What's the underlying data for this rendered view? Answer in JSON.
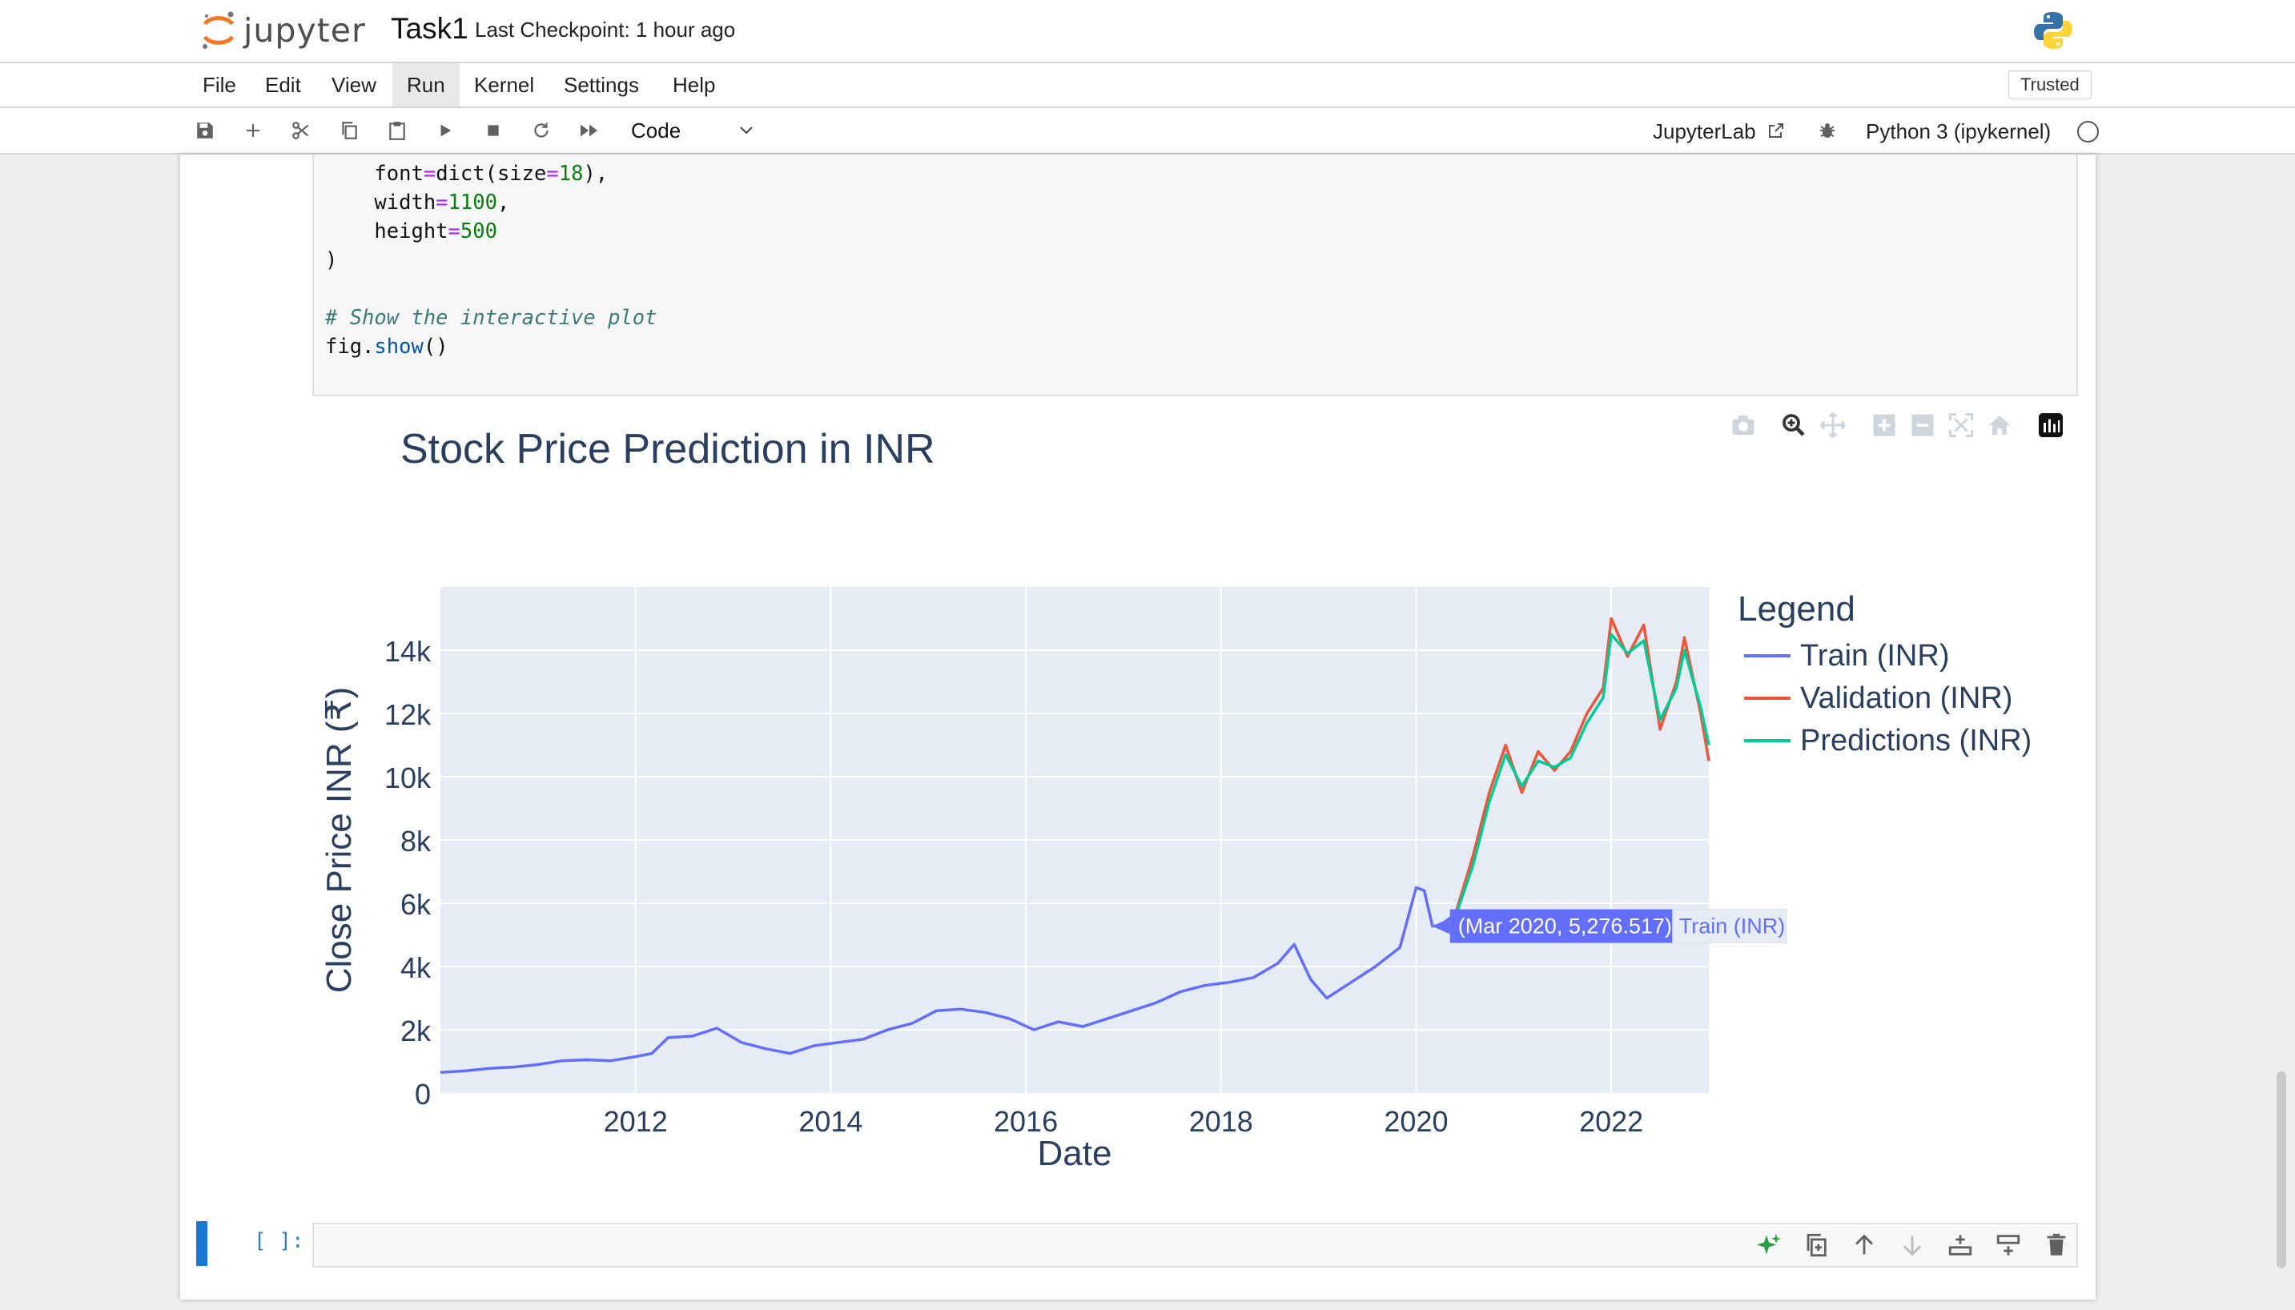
{
  "header": {
    "logo_text": "jupyter",
    "notebook_title": "Task1",
    "checkpoint": "Last Checkpoint: 1 hour ago"
  },
  "menu": {
    "items": [
      "File",
      "Edit",
      "View",
      "Run",
      "Kernel",
      "Settings",
      "Help"
    ],
    "active": "Run",
    "trusted": "Trusted"
  },
  "toolbar": {
    "cell_type": "Code",
    "jupyterlab_label": "JupyterLab",
    "kernel_name": "Python 3 (ipykernel)",
    "icons": [
      "save-icon",
      "add-cell-icon",
      "cut-icon",
      "copy-icon",
      "paste-icon",
      "run-icon",
      "stop-icon",
      "restart-icon",
      "fast-forward-icon"
    ]
  },
  "code": {
    "lines": [
      "    font=dict(size=18),",
      "    width=1100,",
      "    height=500",
      ")",
      "",
      "# Show the interactive plot",
      "fig.show()"
    ]
  },
  "cell": {
    "prompt": "[ ]:"
  },
  "colors": {
    "train": "#636efa",
    "validation": "#ef553b",
    "predictions": "#00cc96",
    "plot_bg": "#e5ecf6",
    "hover_bg": "#636efa"
  },
  "hover": {
    "text": "(Mar 2020, 5,276.517)",
    "series": "Train (INR)"
  },
  "chart_data": {
    "type": "line",
    "title": "Stock Price Prediction in INR",
    "xlabel": "Date",
    "ylabel": "Close Price INR (₹)",
    "x_range": [
      "2010-01",
      "2023-01"
    ],
    "ylim": [
      0,
      16000
    ],
    "x_ticks": [
      "2012",
      "2014",
      "2016",
      "2018",
      "2020",
      "2022"
    ],
    "y_ticks": [
      "0",
      "2k",
      "4k",
      "6k",
      "8k",
      "10k",
      "12k",
      "14k"
    ],
    "y_tick_values": [
      0,
      2000,
      4000,
      6000,
      8000,
      10000,
      12000,
      14000
    ],
    "grid": true,
    "legend_title": "Legend",
    "legend_position": "right",
    "series": [
      {
        "name": "Train (INR)",
        "points": [
          [
            "2010-01",
            650
          ],
          [
            "2010-04",
            700
          ],
          [
            "2010-07",
            780
          ],
          [
            "2010-10",
            820
          ],
          [
            "2011-01",
            900
          ],
          [
            "2011-04",
            1020
          ],
          [
            "2011-07",
            1050
          ],
          [
            "2011-10",
            1020
          ],
          [
            "2012-01",
            1150
          ],
          [
            "2012-03",
            1250
          ],
          [
            "2012-05",
            1750
          ],
          [
            "2012-08",
            1800
          ],
          [
            "2012-11",
            2050
          ],
          [
            "2013-02",
            1600
          ],
          [
            "2013-05",
            1400
          ],
          [
            "2013-08",
            1250
          ],
          [
            "2013-11",
            1500
          ],
          [
            "2014-02",
            1600
          ],
          [
            "2014-05",
            1700
          ],
          [
            "2014-08",
            2000
          ],
          [
            "2014-11",
            2200
          ],
          [
            "2015-02",
            2600
          ],
          [
            "2015-05",
            2650
          ],
          [
            "2015-08",
            2550
          ],
          [
            "2015-11",
            2350
          ],
          [
            "2016-02",
            2000
          ],
          [
            "2016-05",
            2250
          ],
          [
            "2016-08",
            2100
          ],
          [
            "2016-11",
            2350
          ],
          [
            "2017-02",
            2600
          ],
          [
            "2017-05",
            2850
          ],
          [
            "2017-08",
            3200
          ],
          [
            "2017-11",
            3400
          ],
          [
            "2018-02",
            3500
          ],
          [
            "2018-05",
            3650
          ],
          [
            "2018-08",
            4100
          ],
          [
            "2018-10",
            4700
          ],
          [
            "2018-12",
            3600
          ],
          [
            "2019-02",
            3000
          ],
          [
            "2019-05",
            3500
          ],
          [
            "2019-08",
            4000
          ],
          [
            "2019-11",
            4600
          ],
          [
            "2020-01",
            6500
          ],
          [
            "2020-02",
            6400
          ],
          [
            "2020-03",
            5276.517
          ],
          [
            "2020-04",
            5300
          ],
          [
            "2020-06",
            5700
          ]
        ]
      },
      {
        "name": "Validation (INR)",
        "points": [
          [
            "2020-06",
            5800
          ],
          [
            "2020-08",
            7500
          ],
          [
            "2020-10",
            9500
          ],
          [
            "2020-12",
            11000
          ],
          [
            "2021-02",
            9500
          ],
          [
            "2021-04",
            10800
          ],
          [
            "2021-06",
            10200
          ],
          [
            "2021-08",
            10800
          ],
          [
            "2021-10",
            12000
          ],
          [
            "2021-12",
            12800
          ],
          [
            "2022-01",
            15000
          ],
          [
            "2022-03",
            13800
          ],
          [
            "2022-05",
            14800
          ],
          [
            "2022-07",
            11500
          ],
          [
            "2022-09",
            13000
          ],
          [
            "2022-10",
            14400
          ],
          [
            "2022-12",
            12000
          ],
          [
            "2023-01",
            10500
          ]
        ]
      },
      {
        "name": "Predictions (INR)",
        "points": [
          [
            "2020-06",
            5700
          ],
          [
            "2020-08",
            7200
          ],
          [
            "2020-10",
            9200
          ],
          [
            "2020-12",
            10700
          ],
          [
            "2021-02",
            9700
          ],
          [
            "2021-04",
            10500
          ],
          [
            "2021-06",
            10300
          ],
          [
            "2021-08",
            10600
          ],
          [
            "2021-10",
            11700
          ],
          [
            "2021-12",
            12500
          ],
          [
            "2022-01",
            14500
          ],
          [
            "2022-03",
            13900
          ],
          [
            "2022-05",
            14300
          ],
          [
            "2022-07",
            11800
          ],
          [
            "2022-09",
            12800
          ],
          [
            "2022-10",
            14000
          ],
          [
            "2022-12",
            12200
          ],
          [
            "2023-01",
            11000
          ]
        ]
      }
    ]
  }
}
